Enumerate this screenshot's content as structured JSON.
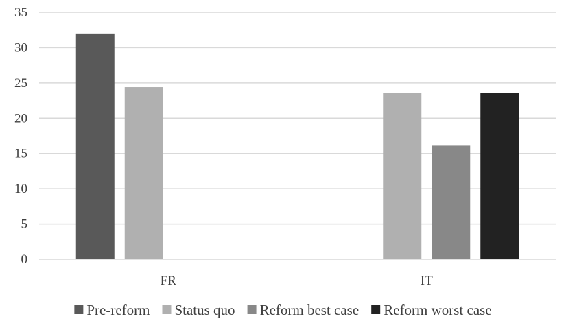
{
  "chart_data": {
    "type": "bar",
    "categories": [
      "FR",
      "IT"
    ],
    "series": [
      {
        "name": "Pre-reform",
        "color": "#595959",
        "values": [
          32.0,
          null
        ]
      },
      {
        "name": "Status quo",
        "color": "#b0b0b0",
        "values": [
          24.4,
          23.6
        ]
      },
      {
        "name": "Reform best case",
        "color": "#888888",
        "values": [
          null,
          16.1
        ]
      },
      {
        "name": "Reform worst case",
        "color": "#222222",
        "values": [
          null,
          23.6
        ]
      }
    ],
    "ylim": [
      0,
      35
    ],
    "yticks": [
      0,
      5,
      10,
      15,
      20,
      25,
      30,
      35
    ],
    "grid": true,
    "legend_position": "bottom"
  }
}
